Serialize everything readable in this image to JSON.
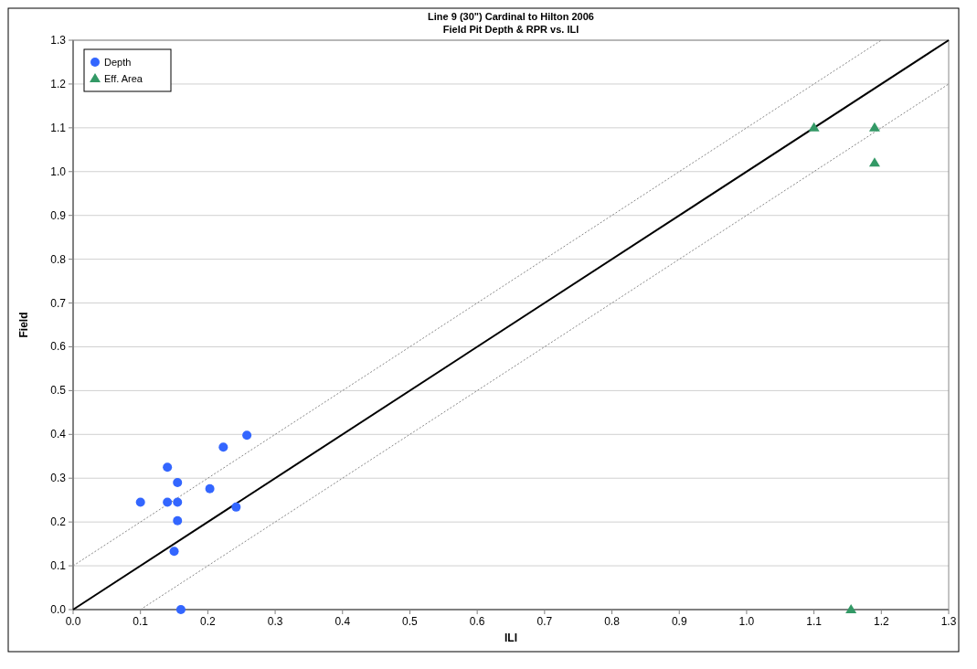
{
  "chart_data": {
    "type": "scatter",
    "title": "Line 9 (30\") Cardinal to Hilton 2006",
    "subtitle": "Field Pit Depth & RPR vs. ILI",
    "xlabel": "ILI",
    "ylabel": "Field",
    "xlim": [
      0,
      1.3
    ],
    "ylim": [
      0,
      1.3
    ],
    "xticks": [
      {
        "value": 0,
        "label": "0.0"
      },
      0.1,
      0.2,
      0.3,
      0.4,
      0.5,
      0.6,
      0.7,
      0.8,
      0.9,
      {
        "value": 1,
        "label": "1.0"
      },
      1.1,
      1.2,
      1.3
    ],
    "yticks": [
      {
        "value": 0,
        "label": "0.0"
      },
      0.1,
      0.2,
      0.3,
      0.4,
      0.5,
      0.6,
      0.7,
      0.8,
      0.9,
      {
        "value": 1,
        "label": "1.0"
      },
      1.1,
      1.2,
      1.3
    ],
    "grid": "y",
    "legend": "top left",
    "series": [
      {
        "type": "line",
        "color": "#000000",
        "line_style": "solid",
        "marker": "none",
        "x": [
          0,
          1.3
        ],
        "values": [
          0,
          1.3
        ]
      },
      {
        "type": "line",
        "color": "#888888",
        "line_style": "dotted",
        "marker": "none",
        "x": [
          0,
          1.2
        ],
        "values": [
          0.1,
          1.3
        ]
      },
      {
        "type": "line",
        "color": "#888888",
        "line_style": "dotted",
        "marker": "none",
        "x": [
          0.1,
          1.3
        ],
        "values": [
          0,
          1.2
        ]
      },
      {
        "name": "Depth",
        "color": "#3366ff",
        "marker": "circle",
        "x": [
          0.1,
          0.14,
          0.14,
          0.155,
          0.155,
          0.155,
          0.15,
          0.16,
          0.203,
          0.223,
          0.242,
          0.258
        ],
        "values": [
          0.245,
          0.325,
          0.245,
          0.29,
          0.245,
          0.203,
          0.133,
          0.0,
          0.276,
          0.371,
          0.234,
          0.398
        ]
      },
      {
        "name": "Eff. Area",
        "color": "#339966",
        "marker": "triangle",
        "x": [
          1.1,
          1.19,
          1.19,
          1.155
        ],
        "values": [
          1.1,
          1.1,
          1.02,
          0.0
        ]
      }
    ]
  }
}
